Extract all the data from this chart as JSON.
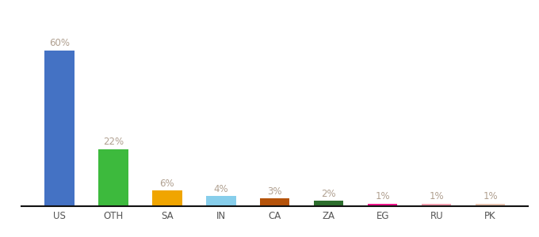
{
  "categories": [
    "US",
    "OTH",
    "SA",
    "IN",
    "CA",
    "ZA",
    "EG",
    "RU",
    "PK"
  ],
  "values": [
    60,
    22,
    6,
    4,
    3,
    2,
    1,
    1,
    1
  ],
  "labels": [
    "60%",
    "22%",
    "6%",
    "4%",
    "3%",
    "2%",
    "1%",
    "1%",
    "1%"
  ],
  "bar_colors": [
    "#4472c4",
    "#3dba3d",
    "#f0a500",
    "#87ceeb",
    "#b5530a",
    "#2d6e2d",
    "#f0168c",
    "#f4a0b0",
    "#e8c4b0"
  ],
  "background_color": "#ffffff",
  "label_color": "#b0a090",
  "label_fontsize": 8.5,
  "xlabel_fontsize": 8.5,
  "xlabel_color": "#555555",
  "ylim": [
    0,
    72
  ],
  "bar_width": 0.55
}
